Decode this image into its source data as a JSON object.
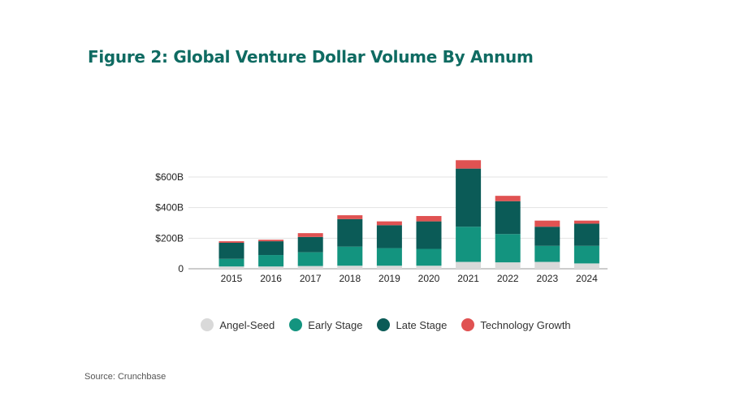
{
  "title": "Figure 2: Global Venture Dollar Volume By Annum",
  "source": "Source: Crunchbase",
  "colors": {
    "Angel-Seed": "#d9d9d9",
    "Early Stage": "#13947f",
    "Late Stage": "#0b5b57",
    "Technology Growth": "#e05252"
  },
  "chart_data": {
    "type": "bar",
    "stacked": true,
    "title": "Figure 2: Global Venture Dollar Volume By Annum",
    "xlabel": "",
    "ylabel": "",
    "categories": [
      "2015",
      "2016",
      "2017",
      "2018",
      "2019",
      "2020",
      "2021",
      "2022",
      "2023",
      "2024"
    ],
    "series": [
      {
        "name": "Angel-Seed",
        "values": [
          15,
          15,
          18,
          20,
          20,
          20,
          45,
          42,
          45,
          35
        ]
      },
      {
        "name": "Early Stage",
        "values": [
          50,
          75,
          90,
          125,
          115,
          110,
          230,
          185,
          105,
          115
        ]
      },
      {
        "name": "Late Stage",
        "values": [
          105,
          90,
          100,
          180,
          150,
          180,
          380,
          215,
          125,
          145
        ]
      },
      {
        "name": "Technology Growth",
        "values": [
          10,
          10,
          25,
          25,
          25,
          35,
          55,
          35,
          40,
          20
        ]
      }
    ],
    "y_ticks": [
      0,
      200,
      400,
      600
    ],
    "y_tick_labels": [
      "0",
      "$200B",
      "$400B",
      "$600B"
    ],
    "ylim": [
      0,
      700
    ],
    "grid": true,
    "legend_position": "bottom"
  }
}
